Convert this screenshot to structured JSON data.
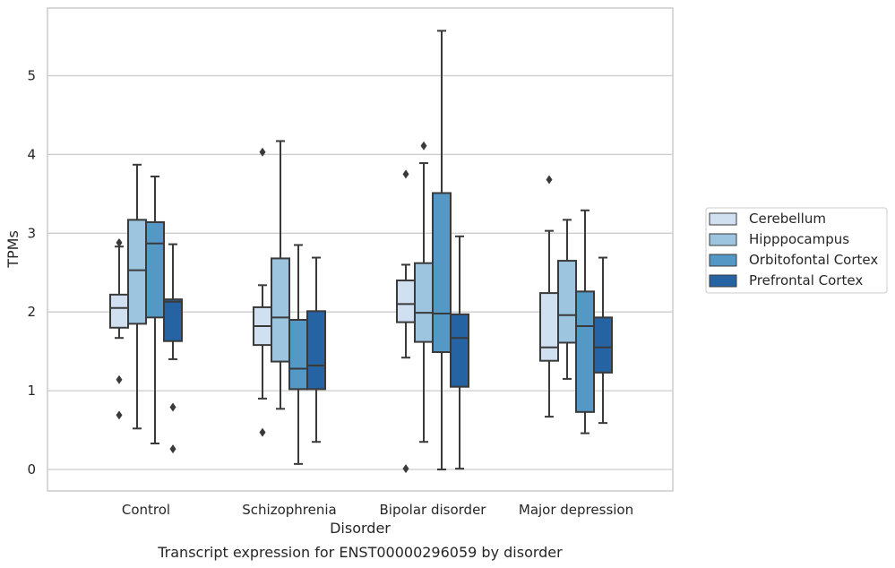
{
  "chart_data": {
    "type": "box",
    "caption": "Transcript expression for ENST00000296059 by disorder",
    "xlabel": "Disorder",
    "ylabel": "TPMs",
    "ylim": [
      -0.27,
      5.85
    ],
    "yticks": [
      0,
      1,
      2,
      3,
      4,
      5
    ],
    "grid": true,
    "legend_position": "right",
    "categories": [
      "Control",
      "Schizophrenia",
      "Bipolar disorder",
      "Major depression"
    ],
    "series": [
      {
        "name": "Cerebellum",
        "color": "#d1e0f0",
        "boxes": [
          {
            "whislo": 1.67,
            "q1": 1.8,
            "med": 2.05,
            "q3": 2.22,
            "whishi": 2.83,
            "fliers": [
              2.88,
              1.14,
              0.69
            ]
          },
          {
            "whislo": 0.9,
            "q1": 1.58,
            "med": 1.82,
            "q3": 2.06,
            "whishi": 2.34,
            "fliers": [
              4.03,
              0.47
            ]
          },
          {
            "whislo": 1.42,
            "q1": 1.87,
            "med": 2.1,
            "q3": 2.4,
            "whishi": 2.6,
            "fliers": [
              3.75,
              0.01
            ]
          },
          {
            "whislo": 0.67,
            "q1": 1.38,
            "med": 1.55,
            "q3": 2.24,
            "whishi": 3.03,
            "fliers": [
              3.68
            ]
          }
        ]
      },
      {
        "name": "Hipppocampus",
        "color": "#9dc5df",
        "boxes": [
          {
            "whislo": 0.52,
            "q1": 1.85,
            "med": 2.53,
            "q3": 3.17,
            "whishi": 3.87,
            "fliers": []
          },
          {
            "whislo": 0.77,
            "q1": 1.37,
            "med": 1.93,
            "q3": 2.68,
            "whishi": 4.17,
            "fliers": []
          },
          {
            "whislo": 0.35,
            "q1": 1.62,
            "med": 1.99,
            "q3": 2.62,
            "whishi": 3.89,
            "fliers": [
              4.11
            ]
          },
          {
            "whislo": 1.15,
            "q1": 1.61,
            "med": 1.96,
            "q3": 2.65,
            "whishi": 3.17,
            "fliers": []
          }
        ]
      },
      {
        "name": "Orbitofontal Cortex",
        "color": "#5498c6",
        "boxes": [
          {
            "whislo": 0.33,
            "q1": 1.93,
            "med": 2.87,
            "q3": 3.14,
            "whishi": 3.72,
            "fliers": []
          },
          {
            "whislo": 0.07,
            "q1": 1.02,
            "med": 1.28,
            "q3": 1.9,
            "whishi": 2.85,
            "fliers": []
          },
          {
            "whislo": 0.0,
            "q1": 1.49,
            "med": 1.98,
            "q3": 3.51,
            "whishi": 5.57,
            "fliers": []
          },
          {
            "whislo": 0.46,
            "q1": 0.73,
            "med": 1.82,
            "q3": 2.26,
            "whishi": 3.29,
            "fliers": []
          }
        ]
      },
      {
        "name": "Prefrontal Cortex",
        "color": "#2563a2",
        "boxes": [
          {
            "whislo": 1.4,
            "q1": 1.63,
            "med": 2.13,
            "q3": 2.16,
            "whishi": 2.86,
            "fliers": [
              0.79,
              0.26
            ]
          },
          {
            "whislo": 0.35,
            "q1": 1.02,
            "med": 1.32,
            "q3": 2.01,
            "whishi": 2.69,
            "fliers": []
          },
          {
            "whislo": 0.01,
            "q1": 1.05,
            "med": 1.67,
            "q3": 1.97,
            "whishi": 2.96,
            "fliers": []
          },
          {
            "whislo": 0.59,
            "q1": 1.23,
            "med": 1.55,
            "q3": 1.93,
            "whishi": 2.69,
            "fliers": []
          }
        ]
      }
    ]
  }
}
